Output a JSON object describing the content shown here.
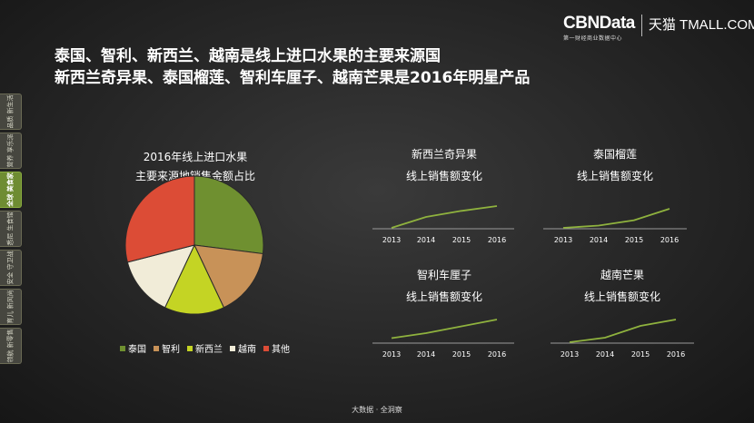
{
  "brand": {
    "name": "CBNData",
    "tagline": "第一财经商业数据中心",
    "partner": "天猫 TMALL.COM"
  },
  "headline": {
    "line1": "泰国、智利、新西兰、越南是线上进口水果的主要来源国",
    "line2": "新西兰奇异果、泰国榴莲、智利车厘子、越南芒果是2016年明星产品"
  },
  "sidebar": {
    "items": [
      {
        "label": "品质 新生活"
      },
      {
        "label": "营养 享乐派"
      },
      {
        "label": "全球 美食家",
        "active": true
      },
      {
        "label": "悉尼 生食馆"
      },
      {
        "label": "安全 守卫战"
      },
      {
        "label": "育儿 新风尚"
      },
      {
        "label": "领航 新零售"
      }
    ]
  },
  "footer": "大数据 · 全洞察",
  "colors": {
    "green": "#6f9030",
    "orange": "#c89258",
    "yellow": "#c4d424",
    "cream": "#f1ecd8",
    "red": "#dc4c36",
    "line": "#8fb23e",
    "axis": "#9a9a9a"
  },
  "chart_data": [
    {
      "type": "pie",
      "title": "2016年线上进口水果",
      "subtitle": "主要来源地销售金额占比",
      "categories": [
        "泰国",
        "智利",
        "新西兰",
        "越南",
        "其他"
      ],
      "values": [
        0.27,
        0.16,
        0.14,
        0.14,
        0.29
      ],
      "colors": [
        "#6f9030",
        "#c89258",
        "#c4d424",
        "#f1ecd8",
        "#dc4c36"
      ]
    },
    {
      "type": "line",
      "title": "新西兰奇异果",
      "subtitle": "线上销售额变化",
      "x": [
        "2013",
        "2014",
        "2015",
        "2016"
      ],
      "series": [
        {
          "values": [
            0,
            0.5,
            0.78,
            1
          ]
        }
      ]
    },
    {
      "type": "line",
      "title": "泰国榴莲",
      "subtitle": "线上销售额变化",
      "x": [
        "2013",
        "2014",
        "2015",
        "2016"
      ],
      "series": [
        {
          "values": [
            0,
            0.12,
            0.4,
            1
          ]
        }
      ]
    },
    {
      "type": "line",
      "title": "智利车厘子",
      "subtitle": "线上销售额变化",
      "x": [
        "2013",
        "2014",
        "2015",
        "2016"
      ],
      "series": [
        {
          "values": [
            0.18,
            0.4,
            0.7,
            1
          ]
        }
      ]
    },
    {
      "type": "line",
      "title": "越南芒果",
      "subtitle": "线上销售额变化",
      "x": [
        "2013",
        "2014",
        "2015",
        "2016"
      ],
      "series": [
        {
          "values": [
            0,
            0.2,
            0.72,
            1
          ]
        }
      ]
    }
  ]
}
